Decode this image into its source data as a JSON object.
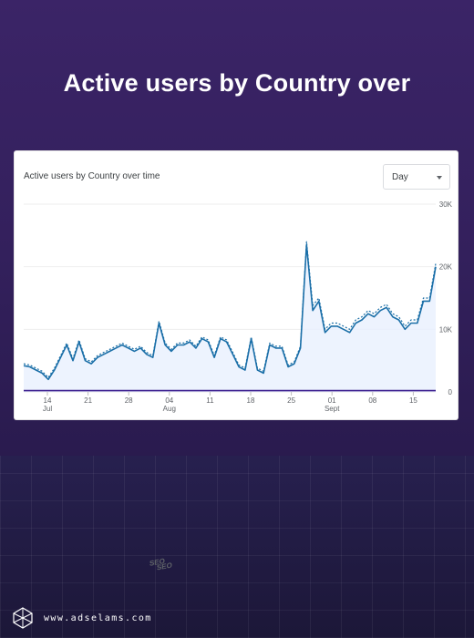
{
  "headline": "Active users by Country over",
  "card": {
    "title": "Active users by Country over time",
    "dropdown_value": "Day"
  },
  "footer": {
    "site": "www.adselams.com"
  },
  "seo_text": "SEO",
  "colors": {
    "line": "#1a73e8",
    "line_dark": "#1b6fa8",
    "area": "#e8f0fe",
    "baseline": "#3c1f8f",
    "seo": "#8b6fd0"
  },
  "chart_data": {
    "type": "line",
    "title": "Active users by Country over time",
    "x_ticks": [
      {
        "label": "14",
        "sub": "Jul"
      },
      {
        "label": "21",
        "sub": ""
      },
      {
        "label": "28",
        "sub": ""
      },
      {
        "label": "04",
        "sub": "Aug"
      },
      {
        "label": "11",
        "sub": ""
      },
      {
        "label": "18",
        "sub": ""
      },
      {
        "label": "25",
        "sub": ""
      },
      {
        "label": "01",
        "sub": "Sept"
      },
      {
        "label": "08",
        "sub": ""
      },
      {
        "label": "15",
        "sub": ""
      }
    ],
    "y_ticks": [
      "0",
      "10K",
      "20K",
      "30K"
    ],
    "ylim": [
      0,
      30000
    ],
    "grid": true,
    "series": [
      {
        "values": [
          4200,
          4000,
          3500,
          3000,
          2000,
          3500,
          5500,
          7500,
          5000,
          8000,
          5000,
          4500,
          5500,
          6000,
          6500,
          7000,
          7500,
          7000,
          6500,
          7000,
          6000,
          5500,
          11000,
          7500,
          6500,
          7500,
          7500,
          8000,
          7000,
          8500,
          8000,
          5500,
          8500,
          8000,
          6000,
          4000,
          3500,
          8500,
          3500,
          3000,
          7500,
          7000,
          7000,
          4000,
          4500,
          7000,
          23500,
          13000,
          14500,
          9500,
          10500,
          10500,
          10000,
          9500,
          11000,
          11500,
          12500,
          12000,
          13000,
          13500,
          12000,
          11500,
          10000,
          11000,
          11000,
          14500,
          14500,
          20000
        ]
      },
      {
        "values": [
          4500,
          4300,
          3800,
          3300,
          2300,
          3800,
          5800,
          7800,
          5300,
          8300,
          5300,
          4800,
          5800,
          6300,
          6800,
          7300,
          7800,
          7300,
          6800,
          7300,
          6300,
          5800,
          11300,
          7800,
          6800,
          7800,
          7800,
          8300,
          7300,
          8800,
          8300,
          5800,
          8800,
          8300,
          6300,
          4300,
          3800,
          8800,
          3800,
          3300,
          7800,
          7300,
          7300,
          4300,
          4800,
          7300,
          24000,
          13800,
          15000,
          10000,
          11000,
          11000,
          10500,
          10000,
          11500,
          12000,
          13000,
          12500,
          13500,
          14000,
          12500,
          12000,
          10500,
          11500,
          11500,
          15000,
          15000,
          20500
        ]
      },
      {
        "values": [
          200,
          200,
          200,
          200,
          200,
          200,
          200,
          200,
          200,
          200,
          200,
          200,
          200,
          200,
          200,
          200,
          200,
          200,
          200,
          200,
          200,
          200,
          200,
          200,
          200,
          200,
          200,
          200,
          200,
          200,
          200,
          200,
          200,
          200,
          200,
          200,
          200,
          200,
          200,
          200,
          200,
          200,
          200,
          200,
          200,
          200,
          200,
          200,
          200,
          200,
          200,
          200,
          200,
          200,
          200,
          200,
          200,
          200,
          200,
          200,
          200,
          200,
          200,
          200,
          200,
          200,
          200,
          200
        ]
      }
    ]
  }
}
